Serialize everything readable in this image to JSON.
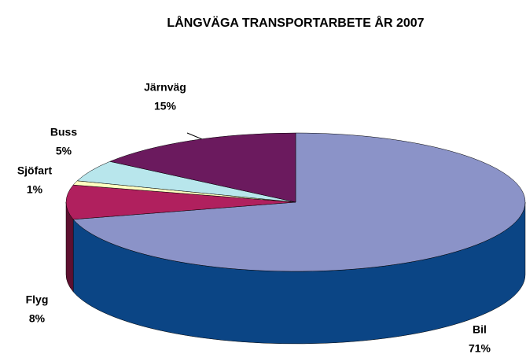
{
  "chart_data": {
    "type": "pie3d",
    "title": "LÅNGVÄGA TRANSPORTARBETE ÅR 2007",
    "categories": [
      "Bil",
      "Flyg",
      "Sjöfart",
      "Buss",
      "Järnväg"
    ],
    "values": [
      71,
      8,
      1,
      5,
      15
    ],
    "value_labels": [
      "71%",
      "8%",
      "1%",
      "5%",
      "15%"
    ],
    "colors": [
      "#8b93c8",
      "#b0205e",
      "#ffffc0",
      "#b8e6ec",
      "#6b1a5e"
    ],
    "side_colors": [
      "#0b4585",
      "#5e1030",
      "#b0b080",
      "#80a8b0",
      "#3c0e35"
    ]
  }
}
